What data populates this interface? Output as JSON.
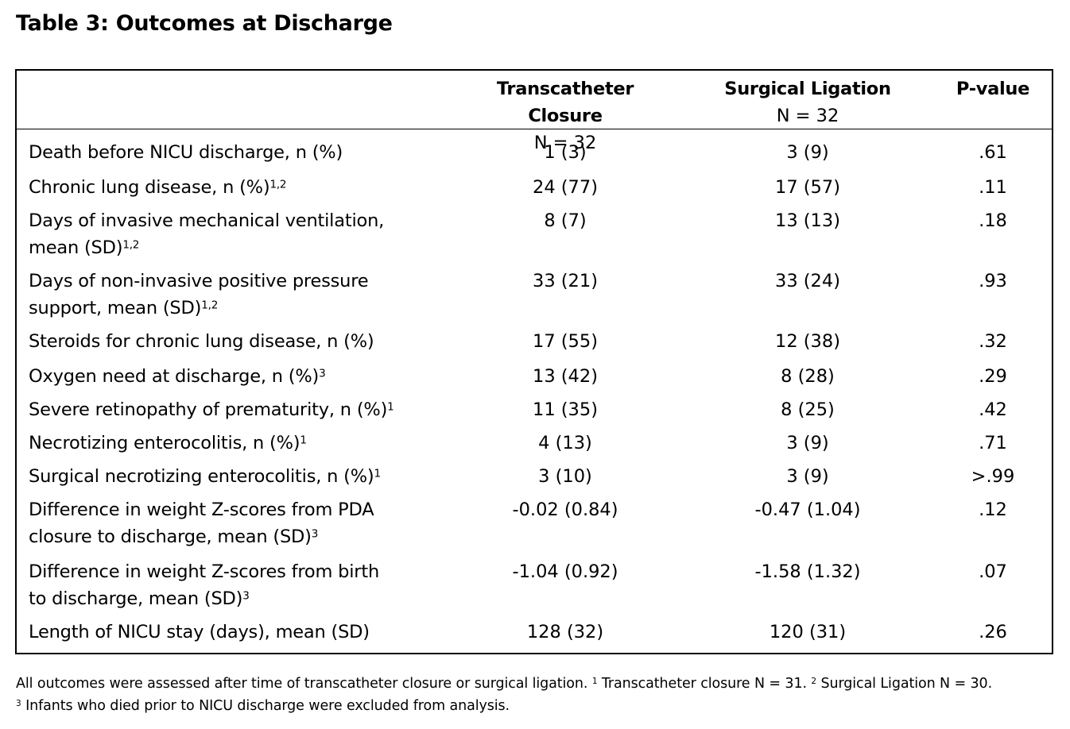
{
  "title": "Table 3: Outcomes at Discharge",
  "columns": [
    {
      "name": "Transcatheter Closure",
      "n": "N = 32"
    },
    {
      "name": "Surgical Ligation",
      "n": "N = 32"
    },
    {
      "name": "P-value",
      "n": ""
    }
  ],
  "rows": [
    {
      "label": [
        "Death before NICU discharge, n (%)"
      ],
      "sup": "",
      "values": [
        "1 (3)",
        "3 (9)",
        ".61"
      ]
    },
    {
      "label": [
        "Chronic lung disease, n (%)"
      ],
      "sup": "1,2",
      "values": [
        "24 (77)",
        "17 (57)",
        ".11"
      ]
    },
    {
      "label": [
        "Days of invasive mechanical ventilation,",
        "mean (SD)"
      ],
      "sup": "1,2",
      "values": [
        "8 (7)",
        "13 (13)",
        ".18"
      ]
    },
    {
      "label": [
        "Days of non-invasive positive pressure",
        "support, mean (SD)"
      ],
      "sup": "1,2",
      "values": [
        "33 (21)",
        "33 (24)",
        ".93"
      ]
    },
    {
      "label": [
        "Steroids for chronic lung disease, n (%)"
      ],
      "sup": "",
      "values": [
        "17 (55)",
        "12 (38)",
        ".32"
      ]
    },
    {
      "label": [
        "Oxygen need at discharge, n (%)"
      ],
      "sup": "3",
      "values": [
        "13 (42)",
        "8 (28)",
        ".29"
      ]
    },
    {
      "label": [
        "Severe retinopathy of prematurity, n (%)"
      ],
      "sup": "1",
      "values": [
        "11 (35)",
        "8 (25)",
        ".42"
      ]
    },
    {
      "label": [
        "Necrotizing enterocolitis, n (%)"
      ],
      "sup": "1",
      "values": [
        "4 (13)",
        "3 (9)",
        ".71"
      ]
    },
    {
      "label": [
        "Surgical necrotizing enterocolitis, n (%)"
      ],
      "sup": "1",
      "values": [
        "3 (10)",
        "3 (9)",
        ">.99"
      ]
    },
    {
      "label": [
        "Difference in weight Z-scores from PDA",
        "closure to discharge, mean (SD)"
      ],
      "sup": "3",
      "values": [
        "-0.02 (0.84)",
        "-0.47 (1.04)",
        ".12"
      ]
    },
    {
      "label": [
        "Difference in weight Z-scores from birth",
        "to discharge, mean (SD)"
      ],
      "sup": "3",
      "values": [
        "-1.04 (0.92)",
        "-1.58 (1.32)",
        ".07"
      ]
    },
    {
      "label": [
        "Length of NICU stay (days), mean (SD)"
      ],
      "sup": "",
      "values": [
        "128 (32)",
        "120 (31)",
        ".26"
      ]
    }
  ],
  "footnote": {
    "line1_main": "All outcomes were assessed after time of transcatheter closure or surgical ligation.",
    "fn1_mark": "1",
    "fn1_text": "Transcatheter closure N = 31.",
    "fn2_mark": "2",
    "fn2_text": "Surgical Ligation N = 30.",
    "fn3_mark": "3",
    "fn3_text": "Infants who died prior to NICU discharge were excluded from analysis."
  }
}
